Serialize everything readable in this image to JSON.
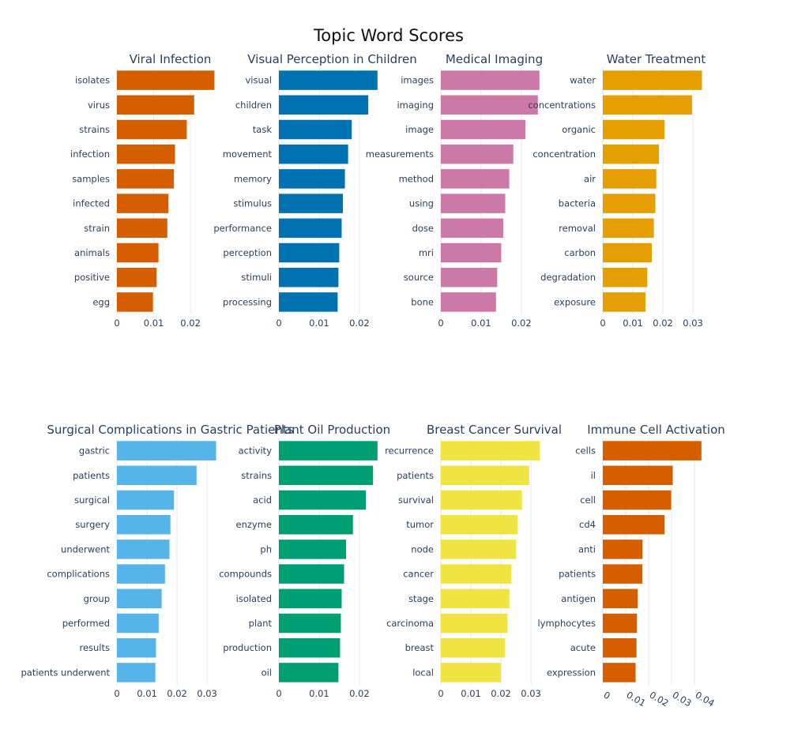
{
  "chart_data": {
    "type": "bar",
    "title": "Topic Word Scores",
    "orientation": "horizontal",
    "grid": "vertical gridlines",
    "subplots": [
      {
        "title": "Viral Infection",
        "color": "#D55E00",
        "ticks": [
          "0",
          "0.01",
          "0.02"
        ],
        "xlim": [
          0,
          0.029
        ],
        "categories": [
          "isolates",
          "virus",
          "strains",
          "infection",
          "samples",
          "infected",
          "strain",
          "animals",
          "positive",
          "egg"
        ],
        "values": [
          0.0265,
          0.021,
          0.019,
          0.0158,
          0.0155,
          0.014,
          0.0137,
          0.0113,
          0.0108,
          0.0098
        ]
      },
      {
        "title": "Visual Perception in Children",
        "color": "#0072B2",
        "ticks": [
          "0",
          "0.01",
          "0.02"
        ],
        "xlim": [
          0,
          0.0265
        ],
        "categories": [
          "visual",
          "children",
          "task",
          "movement",
          "memory",
          "stimulus",
          "performance",
          "perception",
          "stimuli",
          "processing"
        ],
        "values": [
          0.0245,
          0.0222,
          0.0181,
          0.0172,
          0.0164,
          0.0159,
          0.0156,
          0.015,
          0.0148,
          0.0146
        ]
      },
      {
        "title": "Medical Imaging",
        "color": "#CC79A7",
        "ticks": [
          "0",
          "0.01",
          "0.02"
        ],
        "xlim": [
          0,
          0.0265
        ],
        "categories": [
          "images",
          "imaging",
          "image",
          "measurements",
          "method",
          "using",
          "dose",
          "mri",
          "source",
          "bone"
        ],
        "values": [
          0.0245,
          0.0241,
          0.021,
          0.018,
          0.017,
          0.016,
          0.0155,
          0.015,
          0.014,
          0.0137
        ]
      },
      {
        "title": "Water Treatment",
        "color": "#E69F00",
        "ticks": [
          "0",
          "0.01",
          "0.02",
          "0.03"
        ],
        "xlim": [
          0,
          0.0355
        ],
        "categories": [
          "water",
          "concentrations",
          "organic",
          "concentration",
          "air",
          "bacteria",
          "removal",
          "carbon",
          "degradation",
          "exposure"
        ],
        "values": [
          0.033,
          0.0297,
          0.0205,
          0.0187,
          0.0178,
          0.0175,
          0.017,
          0.0163,
          0.0148,
          0.0142
        ]
      },
      {
        "title": "Surgical Complications in Gastric Patients",
        "color": "#56B4E9",
        "ticks": [
          "0",
          "0.01",
          "0.02",
          "0.03"
        ],
        "xlim": [
          0,
          0.0355
        ],
        "categories": [
          "gastric",
          "patients",
          "surgical",
          "surgery",
          "underwent",
          "complications",
          "group",
          "performed",
          "results",
          "patients underwent"
        ],
        "values": [
          0.033,
          0.0265,
          0.019,
          0.0178,
          0.0175,
          0.016,
          0.0149,
          0.0139,
          0.013,
          0.0128
        ]
      },
      {
        "title": "Plant Oil Production",
        "color": "#009E73",
        "ticks": [
          "0",
          "0.01",
          "0.02"
        ],
        "xlim": [
          0,
          0.0265
        ],
        "categories": [
          "activity",
          "strains",
          "acid",
          "enzyme",
          "ph",
          "compounds",
          "isolated",
          "plant",
          "production",
          "oil"
        ],
        "values": [
          0.0245,
          0.0234,
          0.0216,
          0.0184,
          0.0167,
          0.0162,
          0.0156,
          0.0154,
          0.0152,
          0.0148
        ]
      },
      {
        "title": "Breast Cancer Survival",
        "color": "#F0E442",
        "ticks": [
          "0",
          "0.01",
          "0.02",
          "0.03"
        ],
        "xlim": [
          0,
          0.0355
        ],
        "categories": [
          "recurrence",
          "patients",
          "survival",
          "tumor",
          "node",
          "cancer",
          "stage",
          "carcinoma",
          "breast",
          "local"
        ],
        "values": [
          0.033,
          0.0294,
          0.027,
          0.0255,
          0.025,
          0.0235,
          0.0228,
          0.0222,
          0.0213,
          0.02
        ]
      },
      {
        "title": "Immune Cell Activation",
        "color": "#D55E00",
        "ticks": [
          "0",
          "0.01",
          "0.02",
          "0.03",
          "0.04"
        ],
        "xlim": [
          0,
          0.0465
        ],
        "categories": [
          "cells",
          "il",
          "cell",
          "cd4",
          "anti",
          "patients",
          "antigen",
          "lymphocytes",
          "acute",
          "expression"
        ],
        "values": [
          0.043,
          0.0305,
          0.0298,
          0.0269,
          0.0173,
          0.0172,
          0.0152,
          0.0149,
          0.0147,
          0.0143
        ]
      }
    ]
  }
}
